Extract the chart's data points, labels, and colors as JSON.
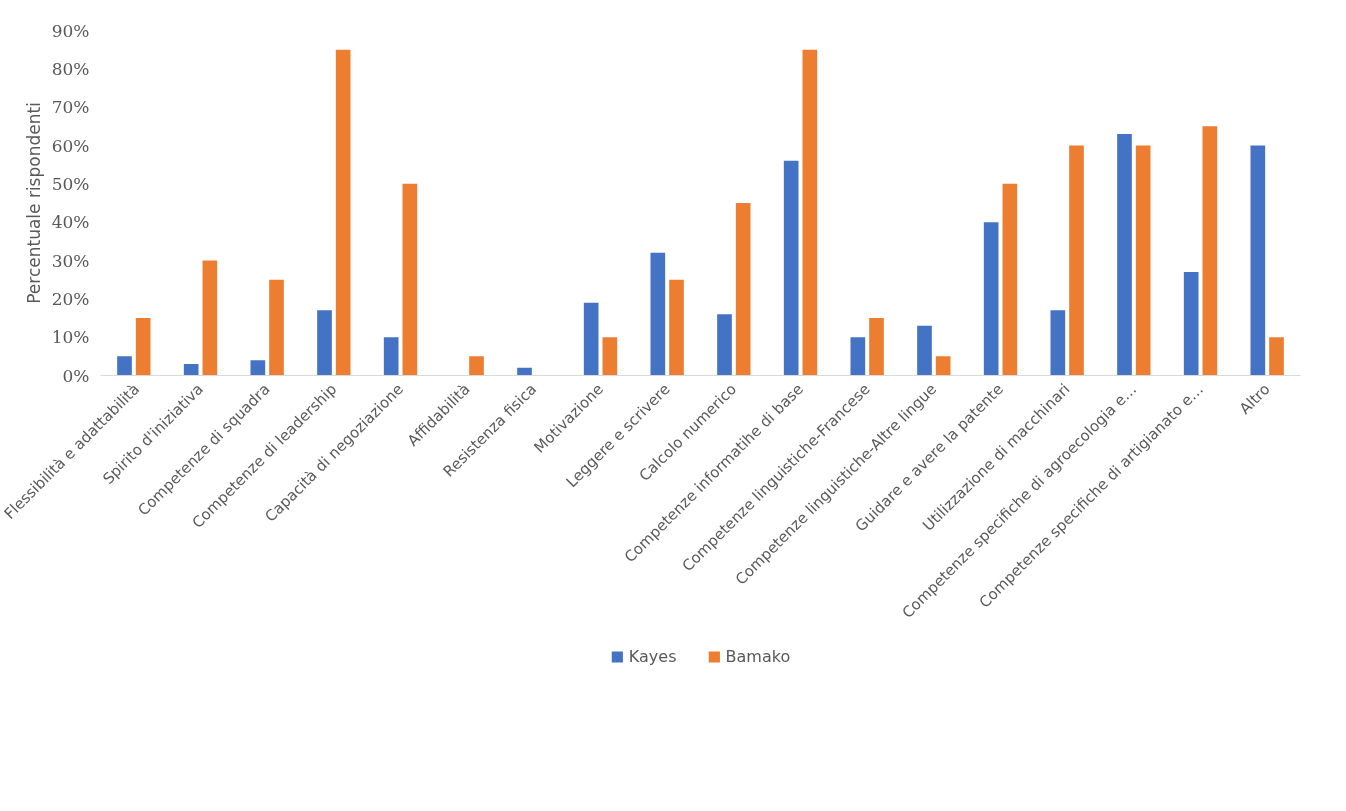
{
  "chart_data": {
    "type": "bar",
    "ylabel": "Percentuale rispondenti",
    "categories": [
      "Flessibilità e adattabilità",
      "Spirito d'iniziativa",
      "Competenze di squadra",
      "Competenze di leadership",
      "Capacità di negoziazione",
      "Affidabilità",
      "Resistenza fisica",
      "Motivazione",
      "Leggere e scrivere",
      "Calcolo numerico",
      "Competenze informatihe di base",
      "Competenze linguistiche-Francese",
      "Competenze linguistiche-Altre lingue",
      "Guidare e avere la patente",
      "Utilizzazione di macchinari",
      "Competenze specifiche di agroecologia e…",
      "Competenze specifiche di artigianato e…",
      "Altro"
    ],
    "series": [
      {
        "name": "Kayes",
        "color": "#4472c4",
        "values": [
          5,
          3,
          4,
          17,
          10,
          0,
          2,
          19,
          32,
          16,
          56,
          10,
          13,
          40,
          17,
          63,
          27,
          60
        ]
      },
      {
        "name": "Bamako",
        "color": "#ed7d31",
        "values": [
          15,
          30,
          25,
          85,
          50,
          5,
          0,
          10,
          25,
          45,
          85,
          15,
          5,
          50,
          60,
          60,
          65,
          10
        ]
      }
    ],
    "ylim": [
      0,
      90
    ],
    "yticks": [
      {
        "value": 0,
        "label": "0%"
      },
      {
        "value": 10,
        "label": "10%"
      },
      {
        "value": 20,
        "label": "20%"
      },
      {
        "value": 30,
        "label": "30%"
      },
      {
        "value": 40,
        "label": "40%"
      },
      {
        "value": 50,
        "label": "50%"
      },
      {
        "value": 60,
        "label": "60%"
      },
      {
        "value": 70,
        "label": "70%"
      },
      {
        "value": 80,
        "label": "80%"
      },
      {
        "value": 90,
        "label": "90%"
      }
    ],
    "grid": false,
    "legend": "bottom"
  }
}
